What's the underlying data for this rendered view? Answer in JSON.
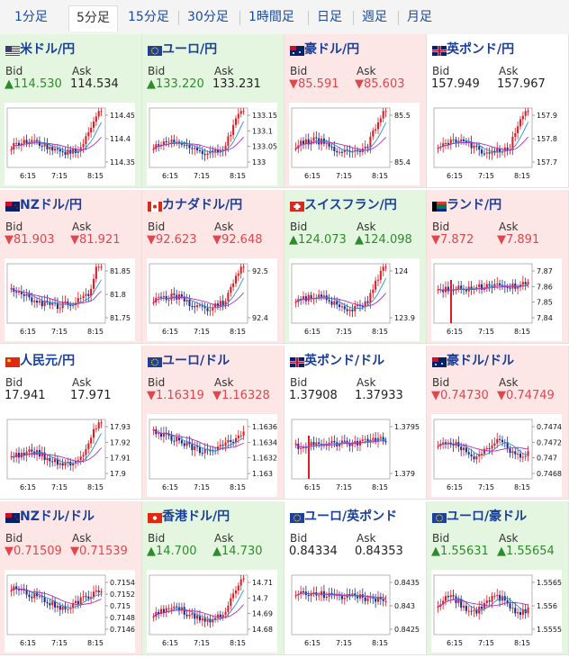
{
  "tabs": [
    "1分足",
    "5分足",
    "15分足",
    "30分足",
    "1時間足",
    "日足",
    "週足",
    "月足"
  ],
  "active_tab": 1,
  "labels": {
    "bid": "Bid",
    "ask": "Ask"
  },
  "cards": [
    {
      "name": "米ドル/円",
      "trend": "up",
      "bid": "▲114.530",
      "ask": "114.534",
      "ask_dir": "flat",
      "bid_dir": "up",
      "flag": "us",
      "yticks": [
        "114.45",
        "114.4",
        "114.35"
      ],
      "xticks": [
        "6:15",
        "7:15",
        "8:15"
      ],
      "chart_shape": "rise"
    },
    {
      "name": "ユーロ/円",
      "trend": "up",
      "bid": "▲133.220",
      "ask": "133.231",
      "ask_dir": "flat",
      "bid_dir": "up",
      "flag": "eu",
      "yticks": [
        "133.15",
        "133.1",
        "133.05",
        "133"
      ],
      "xticks": [
        "6:15",
        "7:15",
        "8:15"
      ],
      "chart_shape": "rise"
    },
    {
      "name": "豪ドル/円",
      "trend": "down",
      "bid": "▼85.591",
      "ask": "▼85.603",
      "ask_dir": "down",
      "bid_dir": "down",
      "flag": "au",
      "yticks": [
        "85.5",
        "85.4"
      ],
      "xticks": [
        "6:15",
        "7:15",
        "8:15"
      ],
      "chart_shape": "rise"
    },
    {
      "name": "英ポンド/円",
      "trend": "flat",
      "bid": "157.949",
      "ask": "157.967",
      "ask_dir": "flat",
      "bid_dir": "flat",
      "flag": "gb",
      "yticks": [
        "157.9",
        "157.8",
        "157.7"
      ],
      "xticks": [
        "6:15",
        "7:15",
        "8:15"
      ],
      "chart_shape": "rise"
    },
    {
      "name": "NZドル/円",
      "trend": "down",
      "bid": "▼81.903",
      "ask": "▼81.921",
      "ask_dir": "down",
      "bid_dir": "down",
      "flag": "nz",
      "yticks": [
        "81.85",
        "81.8",
        "81.75"
      ],
      "xticks": [
        "6:15",
        "7:15",
        "8:15"
      ],
      "chart_shape": "dip_rise"
    },
    {
      "name": "カナダドル/円",
      "trend": "down",
      "bid": "▼92.623",
      "ask": "▼92.648",
      "ask_dir": "down",
      "bid_dir": "down",
      "flag": "ca",
      "yticks": [
        "92.5",
        "92.4"
      ],
      "xticks": [
        "6:15",
        "7:15",
        "8:15"
      ],
      "chart_shape": "rise"
    },
    {
      "name": "スイスフラン/円",
      "trend": "up",
      "bid": "▲124.073",
      "ask": "▲124.098",
      "ask_dir": "up",
      "bid_dir": "up",
      "flag": "ch",
      "yticks": [
        "124",
        "123.9"
      ],
      "xticks": [
        "6:15",
        "7:15",
        "8:15"
      ],
      "chart_shape": "rise"
    },
    {
      "name": "ランド/円",
      "trend": "down",
      "bid": "▼7.872",
      "ask": "▼7.891",
      "ask_dir": "down",
      "bid_dir": "down",
      "flag": "za",
      "yticks": [
        "7.87",
        "7.86",
        "7.85",
        "7.84"
      ],
      "xticks": [
        "6:15",
        "7:15",
        "8:15"
      ],
      "chart_shape": "flat_spike"
    },
    {
      "name": "人民元/円",
      "trend": "flat",
      "bid": "17.941",
      "ask": "17.971",
      "ask_dir": "flat",
      "bid_dir": "flat",
      "flag": "cn",
      "yticks": [
        "17.93",
        "17.92",
        "17.91",
        "17.9"
      ],
      "xticks": [
        "6:15",
        "7:15",
        "8:15"
      ],
      "chart_shape": "rise"
    },
    {
      "name": "ユーロ/ドル",
      "trend": "down",
      "bid": "▼1.16319",
      "ask": "▼1.16328",
      "ask_dir": "down",
      "bid_dir": "down",
      "flag": "eu_us",
      "yticks": [
        "1.1636",
        "1.1634",
        "1.1632",
        "1.163"
      ],
      "xticks": [
        "6:15",
        "7:15",
        "8:15"
      ],
      "chart_shape": "fall_rise"
    },
    {
      "name": "英ポンド/ドル",
      "trend": "flat",
      "bid": "1.37908",
      "ask": "1.37933",
      "ask_dir": "flat",
      "bid_dir": "flat",
      "flag": "gb_us",
      "yticks": [
        "1.3795",
        "1.379"
      ],
      "xticks": [
        "6:15",
        "7:15",
        "8:15"
      ],
      "chart_shape": "flat_spike"
    },
    {
      "name": "豪ドル/ドル",
      "trend": "down",
      "bid": "▼0.74730",
      "ask": "▼0.74749",
      "ask_dir": "down",
      "bid_dir": "down",
      "flag": "au_us",
      "yticks": [
        "0.7474",
        "0.7472",
        "0.747",
        "0.7468"
      ],
      "xticks": [
        "6:15",
        "7:15",
        "8:15"
      ],
      "chart_shape": "choppy"
    },
    {
      "name": "NZドル/ドル",
      "trend": "down",
      "bid": "▼0.71509",
      "ask": "▼0.71539",
      "ask_dir": "down",
      "bid_dir": "down",
      "flag": "nz_us",
      "yticks": [
        "0.7154",
        "0.7152",
        "0.715",
        "0.7148",
        "0.7146"
      ],
      "xticks": [
        "6:15",
        "7:15",
        "8:15"
      ],
      "chart_shape": "fall_rise"
    },
    {
      "name": "香港ドル/円",
      "trend": "up",
      "bid": "▲14.700",
      "ask": "▲14.730",
      "ask_dir": "up",
      "bid_dir": "up",
      "flag": "hk",
      "yticks": [
        "14.71",
        "14.7",
        "14.69",
        "14.68"
      ],
      "xticks": [
        "6:15",
        "7:15",
        "8:15"
      ],
      "chart_shape": "rise"
    },
    {
      "name": "ユーロ/英ポンド",
      "trend": "flat",
      "bid": "0.84334",
      "ask": "0.84353",
      "ask_dir": "flat",
      "bid_dir": "flat",
      "flag": "eu_gb",
      "yticks": [
        "0.8435",
        "0.843",
        "0.8425"
      ],
      "xticks": [
        "6:15",
        "7:15",
        "8:15"
      ],
      "chart_shape": "spike_flat"
    },
    {
      "name": "ユーロ/豪ドル",
      "trend": "up",
      "bid": "▲1.55631",
      "ask": "▲1.55654",
      "ask_dir": "up",
      "bid_dir": "up",
      "flag": "eu_au",
      "yticks": [
        "1.5565",
        "1.556",
        "1.5555"
      ],
      "xticks": [
        "6:15",
        "7:15",
        "8:15"
      ],
      "chart_shape": "choppy"
    }
  ]
}
